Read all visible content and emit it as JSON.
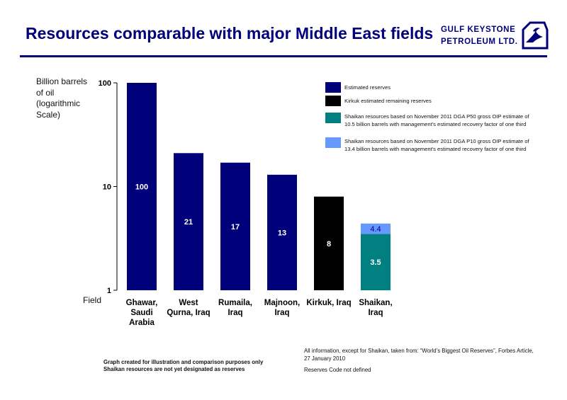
{
  "header": {
    "title": "Resources comparable with major Middle East fields",
    "logo_line1": "GULF KEYSTONE",
    "logo_line2": "PETROLEUM LTD."
  },
  "colors": {
    "title": "#00007a",
    "estimated_reserves": "#00007a",
    "kirkuk": "#000000",
    "shaikan_p50": "#008080",
    "shaikan_p10": "#6699ff"
  },
  "icons": {
    "logo": "keystone-bird-icon"
  },
  "chart_data": {
    "type": "bar",
    "scale": "log",
    "ylim": [
      1,
      100
    ],
    "yticks": [
      "1",
      "10",
      "100"
    ],
    "ylabel": "Billion barrels of oil (logarithmic Scale)",
    "xlabel": "Field",
    "categories": [
      "Ghawar, Saudi Arabia",
      "West Qurna, Iraq",
      "Rumaila, Iraq",
      "Majnoon, Iraq",
      "Kirkuk, Iraq",
      "Shaikan, Iraq"
    ],
    "bars": [
      {
        "category": "Ghawar, Saudi Arabia",
        "value": 100,
        "label": "100",
        "series": "Estimated reserves"
      },
      {
        "category": "West Qurna, Iraq",
        "value": 21,
        "label": "21",
        "series": "Estimated reserves"
      },
      {
        "category": "Rumaila, Iraq",
        "value": 17,
        "label": "17",
        "series": "Estimated reserves"
      },
      {
        "category": "Majnoon, Iraq",
        "value": 13,
        "label": "13",
        "series": "Estimated reserves"
      },
      {
        "category": "Kirkuk, Iraq",
        "value": 8,
        "label": "8",
        "series": "Kirkuk estimated remaining reserves"
      },
      {
        "category": "Shaikan, Iraq",
        "value": 3.5,
        "label": "3.5",
        "series": "Shaikan resources based on November 2011 DGA P50 gross OIP estimate of 10.5 billion barrels with management's estimated recovery factor of one third",
        "stack_top": {
          "value": 4.4,
          "label": "4.4",
          "series": "Shaikan resources based on November 2011 DGA P10 gross OIP estimate of 13.4 billion barrels with management's estimated recovery factor of one third"
        }
      }
    ],
    "legend": [
      {
        "name": "Estimated reserves",
        "color": "#00007a"
      },
      {
        "name": "Kirkuk estimated remaining reserves",
        "color": "#000000"
      },
      {
        "name": "Shaikan resources based on November 2011 DGA P50 gross OIP estimate of 10.5 billion barrels with management's estimated recovery factor of one third",
        "color": "#008080"
      },
      {
        "name": "Shaikan resources based on November 2011 DGA P10 gross OIP estimate of 13.4 billion barrels with management's estimated recovery factor of one third",
        "color": "#6699ff"
      }
    ],
    "legend_position": "top-right",
    "grid": false
  },
  "footer": {
    "left_line1": "Graph created for illustration and comparison purposes only",
    "left_line2": "Shaikan resources are not yet designated as reserves",
    "right_note": "All information, except for Shaikan, taken from: “World’s Biggest Oil Reserves”, Forbes Article, 27 January 2010",
    "reserves_code": "Reserves Code not defined"
  }
}
